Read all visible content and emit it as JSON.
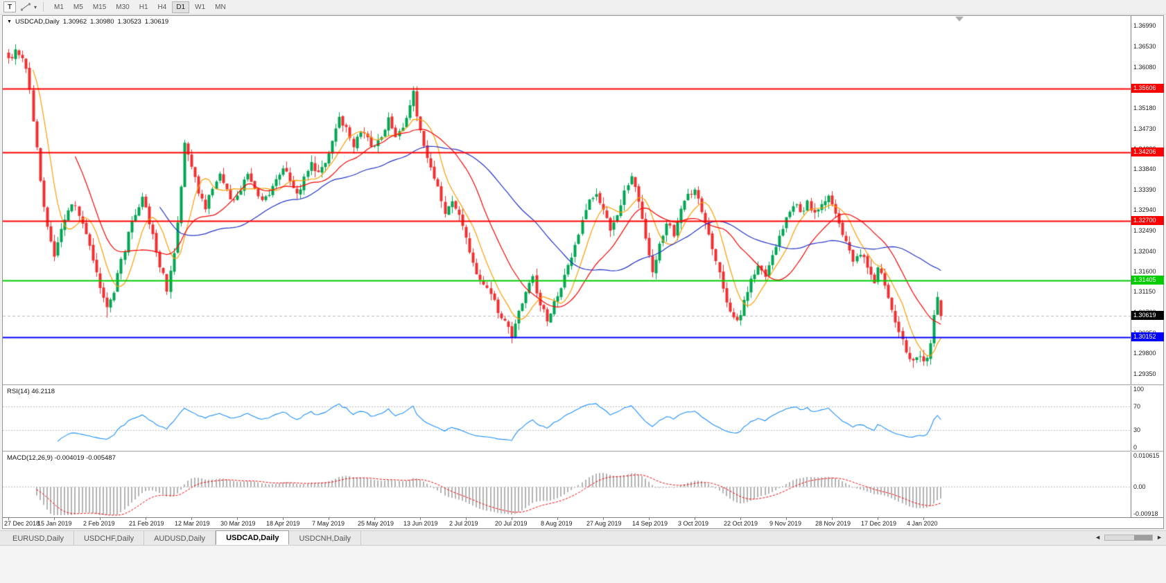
{
  "toolbar": {
    "text_tool_label": "T",
    "timeframes": [
      "M1",
      "M5",
      "M15",
      "M30",
      "H1",
      "H4",
      "D1",
      "W1",
      "MN"
    ],
    "active_timeframe": "D1"
  },
  "chart": {
    "title": "USDCAD,Daily",
    "ohlc": {
      "open": "1.30962",
      "high": "1.30980",
      "low": "1.30523",
      "close": "1.30619"
    }
  },
  "chart_data": {
    "type": "candlestick",
    "symbol": "USDCAD",
    "timeframe": "Daily",
    "bars": 266,
    "current_bar": {
      "open": 1.30962,
      "high": 1.3098,
      "low": 1.30523,
      "close": 1.30619
    },
    "colors": {
      "bull": "#00a651",
      "bear": "#f03030",
      "bid_line": "#bdbdbd",
      "shift_marker": "#a9a9a9"
    },
    "y_ticks": [
      "1.36990",
      "1.36530",
      "1.36080",
      "1.35630",
      "1.35180",
      "1.34730",
      "1.34290",
      "1.33840",
      "1.33390",
      "1.32940",
      "1.32490",
      "1.32040",
      "1.31600",
      "1.31150",
      "1.30700",
      "1.30250",
      "1.29800",
      "1.29350"
    ],
    "x_labels": [
      "27 Dec 2018",
      "15 Jan 2019",
      "2 Feb 2019",
      "21 Feb 2019",
      "12 Mar 2019",
      "30 Mar 2019",
      "18 Apr 2019",
      "7 May 2019",
      "25 May 2019",
      "13 Jun 2019",
      "2 Jul 2019",
      "20 Jul 2019",
      "8 Aug 2019",
      "27 Aug 2019",
      "14 Sep 2019",
      "3 Oct 2019",
      "22 Oct 2019",
      "9 Nov 2019",
      "28 Nov 2019",
      "17 Dec 2019",
      "4 Jan 2020"
    ],
    "horizontal_lines": [
      {
        "price": 1.35606,
        "label": "1.35606",
        "color": "#ff0000",
        "width": 2
      },
      {
        "price": 1.34206,
        "label": "1.34206",
        "color": "#ff0000",
        "width": 2
      },
      {
        "price": 1.327,
        "label": "1.32700",
        "color": "#ff0000",
        "width": 2
      },
      {
        "price": 1.31405,
        "label": "1.31405",
        "color": "#00cc00",
        "width": 2
      },
      {
        "price": 1.30152,
        "label": "1.30152",
        "color": "#0000ff",
        "width": 2
      }
    ],
    "current_price_label": {
      "price": 1.30619,
      "label": "1.30619",
      "bg": "#000000"
    },
    "moving_averages": [
      {
        "period": 8,
        "color": "#ff9d00"
      },
      {
        "period": 20,
        "color": "#ff0000"
      },
      {
        "period": 44,
        "color": "#2234cc"
      }
    ],
    "price_anchors": [
      [
        0,
        1.362
      ],
      [
        2,
        1.3648
      ],
      [
        4,
        1.3635
      ],
      [
        6,
        1.356
      ],
      [
        8,
        1.343
      ],
      [
        10,
        1.33
      ],
      [
        12,
        1.323
      ],
      [
        13,
        1.3195
      ],
      [
        15,
        1.325
      ],
      [
        17,
        1.329
      ],
      [
        19,
        1.331
      ],
      [
        21,
        1.326
      ],
      [
        23,
        1.321
      ],
      [
        25,
        1.315
      ],
      [
        26,
        1.312
      ],
      [
        28,
        1.3075
      ],
      [
        30,
        1.312
      ],
      [
        32,
        1.318
      ],
      [
        34,
        1.324
      ],
      [
        36,
        1.329
      ],
      [
        38,
        1.332
      ],
      [
        40,
        1.327
      ],
      [
        42,
        1.32
      ],
      [
        44,
        1.315
      ],
      [
        45,
        1.311
      ],
      [
        47,
        1.32
      ],
      [
        49,
        1.334
      ],
      [
        50,
        1.344
      ],
      [
        52,
        1.339
      ],
      [
        54,
        1.333
      ],
      [
        56,
        1.33
      ],
      [
        58,
        1.334
      ],
      [
        60,
        1.337
      ],
      [
        62,
        1.334
      ],
      [
        64,
        1.331
      ],
      [
        66,
        1.334
      ],
      [
        68,
        1.337
      ],
      [
        70,
        1.334
      ],
      [
        72,
        1.331
      ],
      [
        74,
        1.333
      ],
      [
        76,
        1.336
      ],
      [
        78,
        1.339
      ],
      [
        80,
        1.336
      ],
      [
        82,
        1.333
      ],
      [
        84,
        1.336
      ],
      [
        86,
        1.34
      ],
      [
        88,
        1.337
      ],
      [
        90,
        1.34
      ],
      [
        92,
        1.345
      ],
      [
        94,
        1.35
      ],
      [
        96,
        1.347
      ],
      [
        98,
        1.344
      ],
      [
        100,
        1.347
      ],
      [
        102,
        1.345
      ],
      [
        104,
        1.343
      ],
      [
        106,
        1.346
      ],
      [
        108,
        1.349
      ],
      [
        110,
        1.345
      ],
      [
        112,
        1.348
      ],
      [
        114,
        1.352
      ],
      [
        115,
        1.355
      ],
      [
        116,
        1.35
      ],
      [
        118,
        1.344
      ],
      [
        120,
        1.339
      ],
      [
        122,
        1.334
      ],
      [
        124,
        1.329
      ],
      [
        126,
        1.332
      ],
      [
        128,
        1.328
      ],
      [
        130,
        1.323
      ],
      [
        132,
        1.318
      ],
      [
        134,
        1.314
      ],
      [
        136,
        1.312
      ],
      [
        138,
        1.309
      ],
      [
        140,
        1.306
      ],
      [
        142,
        1.3035
      ],
      [
        143,
        1.302
      ],
      [
        145,
        1.307
      ],
      [
        147,
        1.312
      ],
      [
        149,
        1.3145
      ],
      [
        151,
        1.309
      ],
      [
        153,
        1.3055
      ],
      [
        155,
        1.309
      ],
      [
        157,
        1.313
      ],
      [
        159,
        1.317
      ],
      [
        161,
        1.322
      ],
      [
        163,
        1.327
      ],
      [
        165,
        1.331
      ],
      [
        167,
        1.333
      ],
      [
        169,
        1.329
      ],
      [
        171,
        1.325
      ],
      [
        173,
        1.329
      ],
      [
        175,
        1.333
      ],
      [
        177,
        1.3375
      ],
      [
        179,
        1.331
      ],
      [
        181,
        1.323
      ],
      [
        183,
        1.3165
      ],
      [
        185,
        1.322
      ],
      [
        187,
        1.327
      ],
      [
        189,
        1.324
      ],
      [
        191,
        1.329
      ],
      [
        193,
        1.333
      ],
      [
        195,
        1.334
      ],
      [
        197,
        1.329
      ],
      [
        199,
        1.324
      ],
      [
        201,
        1.318
      ],
      [
        203,
        1.312
      ],
      [
        205,
        1.307
      ],
      [
        207,
        1.3045
      ],
      [
        209,
        1.309
      ],
      [
        211,
        1.314
      ],
      [
        213,
        1.318
      ],
      [
        215,
        1.315
      ],
      [
        217,
        1.32
      ],
      [
        219,
        1.324
      ],
      [
        221,
        1.328
      ],
      [
        223,
        1.331
      ],
      [
        225,
        1.329
      ],
      [
        227,
        1.331
      ],
      [
        229,
        1.329
      ],
      [
        231,
        1.331
      ],
      [
        233,
        1.332
      ],
      [
        236,
        1.326
      ],
      [
        238,
        1.322
      ],
      [
        240,
        1.318
      ],
      [
        242,
        1.32
      ],
      [
        244,
        1.317
      ],
      [
        246,
        1.313
      ],
      [
        247,
        1.317
      ],
      [
        249,
        1.313
      ],
      [
        251,
        1.308
      ],
      [
        253,
        1.303
      ],
      [
        255,
        1.2985
      ],
      [
        257,
        1.296
      ],
      [
        259,
        1.2975
      ],
      [
        261,
        1.2965
      ],
      [
        262,
        1.3
      ],
      [
        263,
        1.306
      ],
      [
        264,
        1.3096
      ],
      [
        265,
        1.3062
      ]
    ],
    "indicators": {
      "rsi": {
        "label": "RSI(14) 46.2118",
        "period": 14,
        "value": 46.2118,
        "levels": [
          70,
          30
        ],
        "scale_ticks": [
          "100",
          "70",
          "30",
          "0"
        ],
        "color": "#1e90ff"
      },
      "macd": {
        "label": "MACD(12,26,9) -0.004019 -0.005487",
        "fast": 12,
        "slow": 26,
        "signal": 9,
        "macd_value": -0.004019,
        "signal_value": -0.005487,
        "scale_ticks": [
          "0.010615",
          "0.00",
          "-0.00918"
        ],
        "histogram_color": "#9b9b9b",
        "signal_color": "#ff0000"
      }
    }
  },
  "tabs": {
    "items": [
      {
        "label": "EURUSD,Daily"
      },
      {
        "label": "USDCHF,Daily"
      },
      {
        "label": "AUDUSD,Daily"
      },
      {
        "label": "USDCAD,Daily"
      },
      {
        "label": "USDCNH,Daily"
      }
    ],
    "active": "USDCAD,Daily"
  }
}
